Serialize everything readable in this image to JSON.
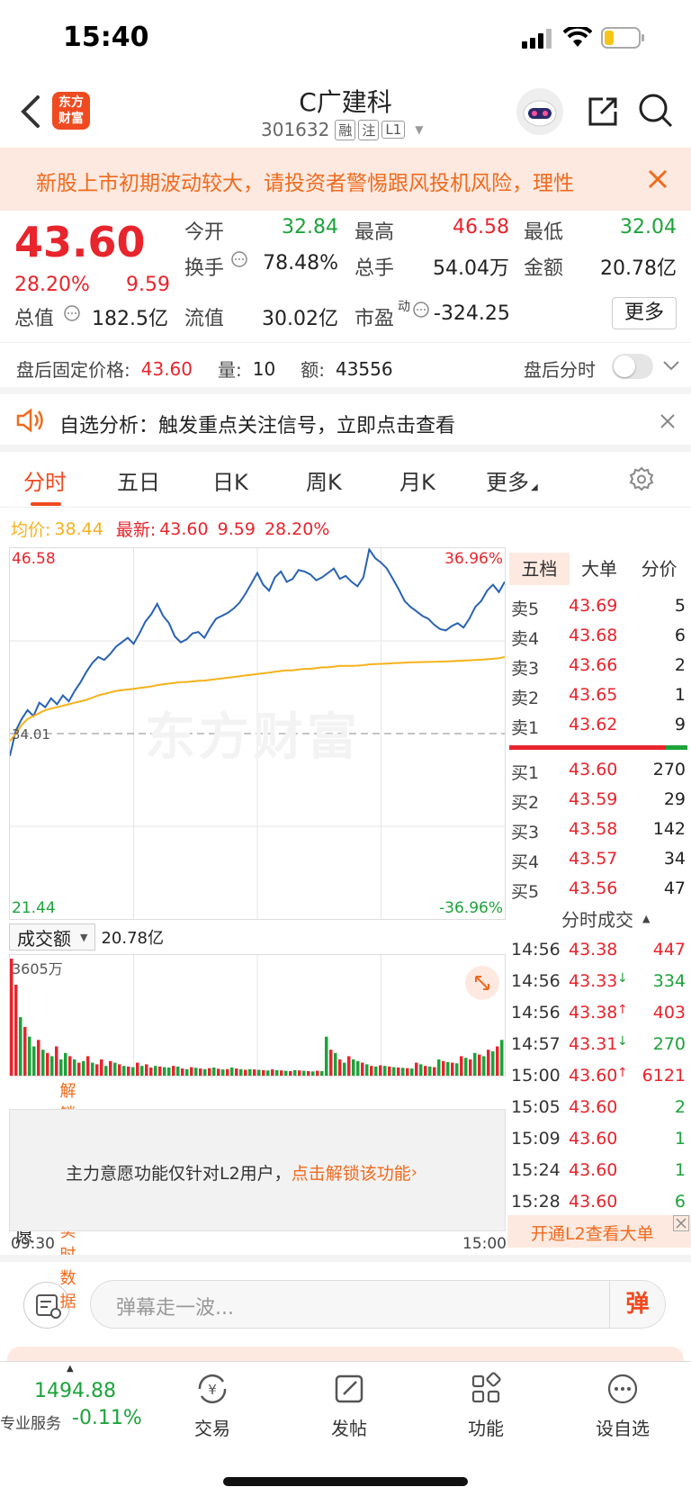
{
  "status_bar": {
    "time": "15:40"
  },
  "header": {
    "title": "C广建科",
    "code": "301632",
    "tags": [
      "融",
      "注",
      "L1"
    ],
    "logo_text": "东方\n财富"
  },
  "warning_banner": {
    "text": "新股上市初期波动较大，请投资者警惕跟风投机风险，理性"
  },
  "quote": {
    "price": "43.60",
    "change_pct": "28.20%",
    "change": "9.59",
    "stats": [
      {
        "label": "今开",
        "value": "32.84",
        "color": "green"
      },
      {
        "label": "最高",
        "value": "46.58",
        "color": "red"
      },
      {
        "label": "最低",
        "value": "32.04",
        "color": "green"
      },
      {
        "label": "换手",
        "value": "78.48%",
        "color": "dark"
      },
      {
        "label": "总手",
        "value": "54.04万",
        "color": "dark"
      },
      {
        "label": "金额",
        "value": "20.78亿",
        "color": "dark"
      },
      {
        "label": "总值",
        "value": "182.5亿",
        "color": "dark"
      },
      {
        "label": "流值",
        "value": "30.02亿",
        "color": "dark"
      },
      {
        "label": "市盈",
        "value": "-324.25",
        "color": "dark"
      }
    ],
    "pe_superscript": "动",
    "more_button": "更多"
  },
  "after_hours": {
    "label": "盘后固定价格:",
    "price": "43.60",
    "vol_label": "量:",
    "vol": "10",
    "amt_label": "额:",
    "amt": "43556",
    "toggle_label": "盘后分时"
  },
  "notice": {
    "text": "自选分析：触发重点关注信号，立即点击查看"
  },
  "tabs": [
    "分时",
    "五日",
    "日K",
    "周K",
    "月K",
    "更多"
  ],
  "chart_info": {
    "avg_label": "均价:",
    "avg": "38.44",
    "latest_label": "最新:",
    "latest": "43.60",
    "change": "9.59",
    "pct": "28.20%"
  },
  "chart_data": {
    "type": "line",
    "y_max_label": "46.58",
    "y_min_label": "21.44",
    "pct_max_label": "36.96%",
    "pct_min_label": "-36.96%",
    "prev_close_label": "34.01",
    "watermark": "东方财富",
    "ylim": [
      21.44,
      46.58
    ],
    "prev_close": 34.01,
    "series": [
      {
        "values": [
          32.5,
          34.2,
          35.0,
          35.6,
          35.2,
          36.1,
          35.8,
          36.4,
          36.0,
          36.6,
          36.2,
          36.9,
          37.5,
          38.2,
          38.8,
          39.2,
          39.0,
          39.4,
          39.9,
          40.2,
          40.5,
          40.1,
          40.8,
          41.6,
          42.1,
          42.8,
          42.0,
          41.5,
          40.6,
          40.2,
          40.4,
          40.8,
          40.9,
          40.5,
          41.2,
          41.8,
          42.0,
          42.2,
          42.5,
          42.9,
          43.5,
          44.2,
          44.9,
          44.1,
          43.7,
          44.6,
          45.0,
          44.3,
          44.5,
          45.1,
          45.0,
          44.8,
          44.4,
          44.6,
          44.9,
          45.2,
          44.5,
          44.7,
          44.3,
          44.0,
          44.6,
          46.5,
          45.9,
          45.6,
          45.2,
          44.5,
          43.8,
          43.0,
          42.6,
          42.3,
          42.0,
          41.8,
          41.4,
          41.1,
          41.0,
          41.3,
          41.5,
          41.2,
          41.8,
          42.6,
          43.0,
          43.7,
          44.1,
          43.6,
          44.3
        ]
      },
      {
        "values": [
          33.5,
          34.0,
          34.6,
          35.0,
          35.2,
          35.4,
          35.6,
          35.7,
          35.8,
          35.9,
          36.0,
          36.1,
          36.2,
          36.3,
          36.45,
          36.6,
          36.7,
          36.8,
          36.9,
          36.95,
          37.0,
          37.05,
          37.1,
          37.15,
          37.2,
          37.3,
          37.35,
          37.4,
          37.45,
          37.5,
          37.5,
          37.55,
          37.6,
          37.6,
          37.65,
          37.7,
          37.75,
          37.8,
          37.85,
          37.9,
          37.95,
          38.0,
          38.05,
          38.1,
          38.15,
          38.2,
          38.25,
          38.3,
          38.3,
          38.35,
          38.4,
          38.4,
          38.45,
          38.5,
          38.5,
          38.55,
          38.6,
          38.6,
          38.6,
          38.62,
          38.65,
          38.7,
          38.72,
          38.74,
          38.76,
          38.78,
          38.8,
          38.82,
          38.84,
          38.85,
          38.86,
          38.87,
          38.88,
          38.89,
          38.9,
          38.92,
          38.94,
          38.96,
          38.98,
          39.0,
          39.02,
          39.05,
          39.08,
          39.12,
          39.2
        ]
      }
    ]
  },
  "volume_panel": {
    "dropdown_label": "成交额",
    "total": "20.78亿",
    "max_label": "3605万",
    "bars": [
      3605,
      2800,
      1800,
      1500,
      1200,
      900,
      1100,
      800,
      700,
      600,
      900,
      500,
      700,
      600,
      500,
      400,
      450,
      600,
      400,
      350,
      500,
      300,
      450,
      400,
      350,
      300,
      280,
      260,
      400,
      300,
      350,
      250,
      300,
      280,
      260,
      250,
      300,
      280,
      220,
      200,
      260,
      240,
      220,
      200,
      230,
      250,
      210,
      190,
      200,
      250,
      220,
      200,
      180,
      200,
      190,
      180,
      170,
      160,
      190,
      170,
      160,
      150,
      140,
      170,
      160,
      150,
      140,
      130,
      150,
      140,
      1200,
      800,
      700,
      500,
      400,
      600,
      500,
      450,
      400,
      350,
      300,
      280,
      320,
      300,
      280,
      260,
      250,
      240,
      230,
      220,
      400,
      350,
      300,
      280,
      260,
      500,
      450,
      420,
      400,
      380,
      600,
      550,
      500,
      700,
      650,
      600,
      800,
      750,
      900,
      1100
    ],
    "bar_colors": [
      "r",
      "r",
      "g",
      "r",
      "g",
      "g",
      "r",
      "g",
      "r",
      "g",
      "r",
      "g",
      "g",
      "r",
      "g",
      "r",
      "g",
      "r",
      "g",
      "r",
      "r",
      "g",
      "r",
      "g",
      "r",
      "g",
      "r",
      "g",
      "r",
      "g",
      "r",
      "r",
      "g",
      "r",
      "g",
      "g",
      "r",
      "g",
      "r",
      "g",
      "r",
      "g",
      "r",
      "g",
      "r",
      "g",
      "r",
      "g",
      "r",
      "g",
      "r",
      "g",
      "r",
      "g",
      "r",
      "g",
      "r",
      "g",
      "r",
      "g",
      "r",
      "g",
      "r",
      "g",
      "r",
      "g",
      "r",
      "g",
      "r",
      "g",
      "g",
      "r",
      "g",
      "r",
      "g",
      "r",
      "g",
      "g",
      "r",
      "g",
      "r",
      "g",
      "r",
      "g",
      "r",
      "g",
      "r",
      "g",
      "r",
      "g",
      "r",
      "g",
      "r",
      "g",
      "r",
      "g",
      "r",
      "g",
      "r",
      "g",
      "r",
      "g",
      "r",
      "g",
      "r",
      "g",
      "r",
      "g",
      "r",
      "g"
    ]
  },
  "main_force": {
    "dropdown_label": "主力意愿",
    "unlock_link": "解锁查看最新实时数据",
    "info_text": "主力意愿功能仅针对L2用户，",
    "info_link": "点击解锁该功能"
  },
  "time_axis": {
    "start": "09:30",
    "end": "15:00"
  },
  "order_book": {
    "tabs": [
      "五档",
      "大单",
      "分价"
    ],
    "asks": [
      {
        "label": "卖5",
        "price": "43.69",
        "vol": "5"
      },
      {
        "label": "卖4",
        "price": "43.68",
        "vol": "6"
      },
      {
        "label": "卖3",
        "price": "43.66",
        "vol": "2"
      },
      {
        "label": "卖2",
        "price": "43.65",
        "vol": "1"
      },
      {
        "label": "卖1",
        "price": "43.62",
        "vol": "9"
      }
    ],
    "bids": [
      {
        "label": "买1",
        "price": "43.60",
        "vol": "270"
      },
      {
        "label": "买2",
        "price": "43.59",
        "vol": "29"
      },
      {
        "label": "买3",
        "price": "43.58",
        "vol": "142"
      },
      {
        "label": "买4",
        "price": "43.57",
        "vol": "34"
      },
      {
        "label": "买5",
        "price": "43.56",
        "vol": "47"
      }
    ],
    "ticks_header": "分时成交",
    "ticks": [
      {
        "time": "14:56",
        "price": "43.38",
        "arrow": "",
        "vol": "447",
        "vcolor": "red"
      },
      {
        "time": "14:56",
        "price": "43.33",
        "arrow": "↓",
        "vol": "334",
        "vcolor": "green"
      },
      {
        "time": "14:56",
        "price": "43.38",
        "arrow": "↑",
        "vol": "403",
        "vcolor": "red"
      },
      {
        "time": "14:57",
        "price": "43.31",
        "arrow": "↓",
        "vol": "270",
        "vcolor": "green"
      },
      {
        "time": "15:00",
        "price": "43.60",
        "arrow": "↑",
        "vol": "6121",
        "vcolor": "red"
      },
      {
        "time": "15:05",
        "price": "43.60",
        "arrow": "",
        "vol": "2",
        "vcolor": "green"
      },
      {
        "time": "15:09",
        "price": "43.60",
        "arrow": "",
        "vol": "1",
        "vcolor": "green"
      },
      {
        "time": "15:24",
        "price": "43.60",
        "arrow": "",
        "vol": "1",
        "vcolor": "green"
      },
      {
        "time": "15:28",
        "price": "43.60",
        "arrow": "",
        "vol": "6",
        "vcolor": "green"
      }
    ],
    "l2_promo": "开通L2查看大单"
  },
  "comment_bar": {
    "placeholder": "弹幕走一波...",
    "danmu_icon": "弹"
  },
  "bottom_nav": {
    "index_value": "1494.88",
    "index_change": "-0.11%",
    "index_label": "专业服务",
    "items": [
      "交易",
      "发帖",
      "功能",
      "设自选"
    ]
  }
}
